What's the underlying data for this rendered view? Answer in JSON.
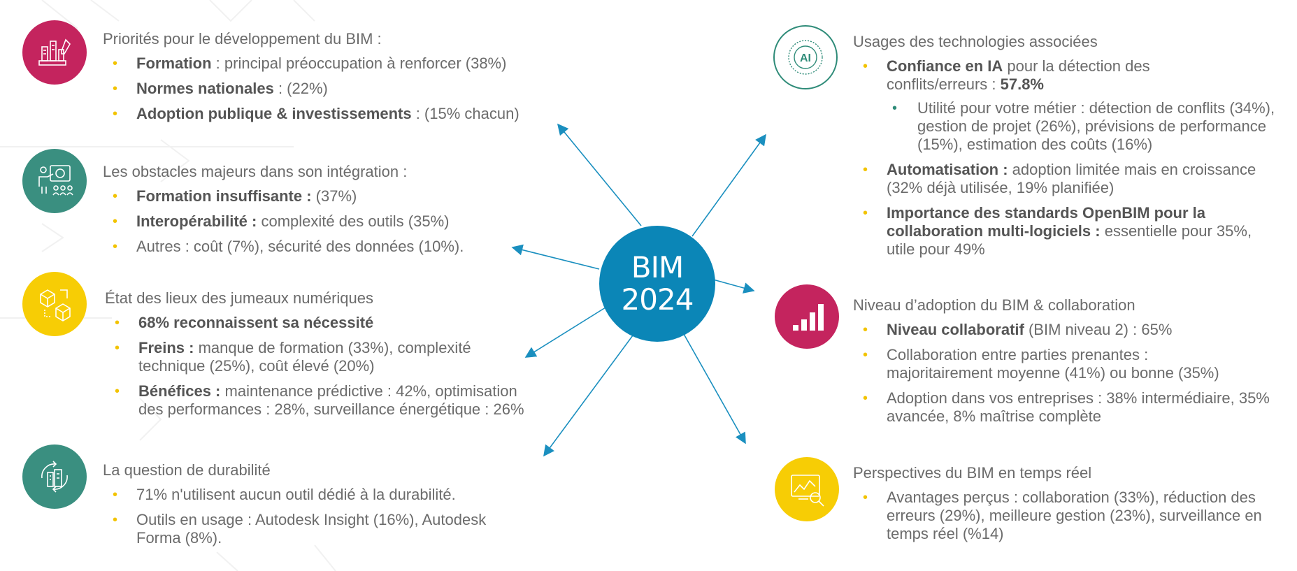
{
  "center": {
    "line1": "BIM",
    "line2": "2024",
    "color": "#0b86b7"
  },
  "colors": {
    "magenta": "#c4245e",
    "teal": "#3a8f80",
    "yellow": "#f7cd05",
    "bullet": "#f2c300",
    "arrow": "#1a8fbf"
  },
  "left": [
    {
      "icon": "planning-icon",
      "heading": "Priorités pour le développement du BIM :",
      "items": [
        {
          "bold": "Formation",
          "text": " : principal préoccupation à renforcer (38%)"
        },
        {
          "bold": "Normes nationales",
          "text": " : (22%)"
        },
        {
          "bold": "Adoption publique & investissements",
          "text": " : (15% chacun)"
        }
      ]
    },
    {
      "icon": "presentation-icon",
      "heading": "Les obstacles majeurs dans son intégration :",
      "items": [
        {
          "bold": "Formation insuffisante :",
          "text": " (37%)"
        },
        {
          "bold": "Interopérabilité :",
          "text": " complexité des outils (35%)"
        },
        {
          "bold": "",
          "text": "Autres : coût (7%), sécurité des données (10%)."
        }
      ]
    },
    {
      "icon": "digital-twin-icon",
      "heading": "État des lieux des jumeaux numériques",
      "items": [
        {
          "bold": "68% reconnaissent sa nécessité",
          "text": ""
        },
        {
          "bold": "Freins :",
          "text": " manque de formation (33%), complexité technique (25%), coût élevé (20%)"
        },
        {
          "bold": "Bénéfices :",
          "text": " maintenance prédictive : 42%, optimisation des performances : 28%, surveillance énergétique : 26%"
        }
      ]
    },
    {
      "icon": "sustainability-icon",
      "heading": "La question de durabilité",
      "items": [
        {
          "bold": "",
          "text": "71% n'utilisent aucun outil dédié à la durabilité."
        },
        {
          "bold": "",
          "text": "Outils en usage : Autodesk Insight (16%), Autodesk Forma (8%)."
        }
      ]
    }
  ],
  "right": [
    {
      "icon": "ai-icon",
      "icon_text": "AI",
      "heading": "Usages des technologies associées",
      "items": [
        {
          "bold": "Confiance en IA",
          "text": " pour la détection des conflits/erreurs : ",
          "bold2": "57.8%"
        },
        {
          "bold": "Automatisation :",
          "text": " adoption limitée mais en croissance (32% déjà utilisée, 19% planifiée)"
        },
        {
          "bold": "Importance des standards OpenBIM pour la collaboration multi-logiciels :",
          "text": " essentielle pour 35%, utile pour 49%"
        }
      ],
      "subitem": "Utilité pour votre métier : détection de conflits (34%), gestion de projet (26%), prévisions de performance (15%), estimation des coûts (16%)"
    },
    {
      "icon": "bar-chart-icon",
      "heading": "Niveau d’adoption du BIM & collaboration",
      "items": [
        {
          "bold": "Niveau collaboratif",
          "text": " (BIM niveau 2) : 65%"
        },
        {
          "bold": "",
          "text": "Collaboration entre parties prenantes : majoritairement moyenne (41%) ou bonne (35%)"
        },
        {
          "bold": "",
          "text": "Adoption dans vos entreprises : 38% intermédiaire, 35% avancée, 8% maîtrise complète"
        }
      ]
    },
    {
      "icon": "analytics-search-icon",
      "heading": "Perspectives du BIM en temps réel",
      "items": [
        {
          "bold": "",
          "text": "Avantages perçus : collaboration (33%), réduction des erreurs (29%), meilleure gestion (23%), surveillance en temps réel (%14)"
        }
      ]
    }
  ]
}
